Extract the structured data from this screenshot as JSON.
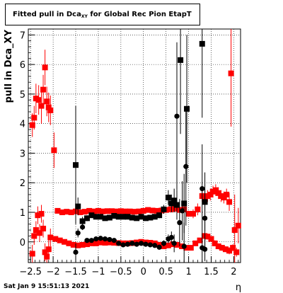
{
  "title": {
    "main": "Fitted pull in Dca",
    "sub": "XY",
    "rest": " for Global Rec Pion EtapT"
  },
  "timestamp": "Sat Jan  9 15:51:13 2021",
  "colors": {
    "series_red": "#ff0000",
    "series_black": "#000000",
    "grid": "#000000",
    "frame": "#000000"
  },
  "chart_data": {
    "type": "scatter",
    "title": "Fitted pull in Dca_XY for Global Rec Pion EtapT",
    "xlabel": "η",
    "ylabel": "pull in Dca_XY",
    "xlim": [
      -2.55,
      2.15
    ],
    "ylim": [
      -0.7,
      7.2
    ],
    "grid": true,
    "xticks": [
      -2.5,
      -2,
      -1.5,
      -1,
      -0.5,
      0,
      0.5,
      1,
      1.5,
      2
    ],
    "xtick_labels": [
      "−2.5",
      "−2",
      "−1.5",
      "−1",
      "−0.5",
      "0",
      "0.5",
      "1",
      "1.5",
      "2"
    ],
    "yticks": [
      0,
      1,
      2,
      3,
      4,
      5,
      6,
      7
    ],
    "ytick_labels": [
      "0",
      "1",
      "2",
      "3",
      "4",
      "5",
      "6",
      "7"
    ],
    "series": [
      {
        "color": "#ff0000",
        "marker": "square",
        "points": [
          {
            "x": -2.46,
            "y": 3.95,
            "err": 0.4
          },
          {
            "x": -2.42,
            "y": 4.2,
            "err": 0.4
          },
          {
            "x": -2.38,
            "y": 4.85,
            "err": 0.5
          },
          {
            "x": -2.32,
            "y": 4.8,
            "err": 0.5
          },
          {
            "x": -2.26,
            "y": 4.6,
            "err": 0.6
          },
          {
            "x": -2.22,
            "y": 5.15,
            "err": 0.5
          },
          {
            "x": -2.18,
            "y": 5.9,
            "err": 0.6
          },
          {
            "x": -2.14,
            "y": 4.75,
            "err": 0.5
          },
          {
            "x": -2.1,
            "y": 4.55,
            "err": 0.5
          },
          {
            "x": -2.06,
            "y": 4.45,
            "err": 0.5
          },
          {
            "x": -1.98,
            "y": 3.1,
            "err": 0.6
          },
          {
            "x": -1.9,
            "y": 1.05,
            "err": 0.06
          },
          {
            "x": -1.8,
            "y": 1.0,
            "err": 0.05
          },
          {
            "x": -1.7,
            "y": 1.02,
            "err": 0.05
          },
          {
            "x": -1.6,
            "y": 1.0,
            "err": 0.05
          },
          {
            "x": -1.5,
            "y": 1.03,
            "err": 0.05
          },
          {
            "x": -1.4,
            "y": 1.0,
            "err": 0.05
          },
          {
            "x": -1.3,
            "y": 1.02,
            "err": 0.05
          },
          {
            "x": -1.2,
            "y": 1.05,
            "err": 0.05
          },
          {
            "x": -1.1,
            "y": 1.03,
            "err": 0.05
          },
          {
            "x": -1.0,
            "y": 1.05,
            "err": 0.05
          },
          {
            "x": -0.9,
            "y": 1.03,
            "err": 0.05
          },
          {
            "x": -0.8,
            "y": 1.04,
            "err": 0.05
          },
          {
            "x": -0.7,
            "y": 1.04,
            "err": 0.05
          },
          {
            "x": -0.6,
            "y": 1.03,
            "err": 0.05
          },
          {
            "x": -0.5,
            "y": 1.04,
            "err": 0.05
          },
          {
            "x": -0.4,
            "y": 1.03,
            "err": 0.05
          },
          {
            "x": -0.3,
            "y": 1.03,
            "err": 0.05
          },
          {
            "x": -0.2,
            "y": 1.02,
            "err": 0.05
          },
          {
            "x": -0.1,
            "y": 1.03,
            "err": 0.05
          },
          {
            "x": 0.0,
            "y": 1.05,
            "err": 0.05
          },
          {
            "x": 0.1,
            "y": 1.08,
            "err": 0.05
          },
          {
            "x": 0.2,
            "y": 1.06,
            "err": 0.05
          },
          {
            "x": 0.3,
            "y": 1.05,
            "err": 0.05
          },
          {
            "x": 0.4,
            "y": 1.06,
            "err": 0.05
          },
          {
            "x": 0.5,
            "y": 1.08,
            "err": 0.05
          },
          {
            "x": 0.6,
            "y": 1.1,
            "err": 0.06
          },
          {
            "x": 0.7,
            "y": 1.12,
            "err": 0.06
          },
          {
            "x": 0.8,
            "y": 1.08,
            "err": 0.06
          },
          {
            "x": 0.9,
            "y": 1.1,
            "err": 0.06
          },
          {
            "x": 1.0,
            "y": 0.95,
            "err": 0.1
          },
          {
            "x": 1.1,
            "y": 0.95,
            "err": 0.15
          },
          {
            "x": 1.2,
            "y": 1.1,
            "err": 0.2
          },
          {
            "x": 1.3,
            "y": 1.55,
            "err": 0.2
          },
          {
            "x": 1.36,
            "y": 1.45,
            "err": 0.2
          },
          {
            "x": 1.42,
            "y": 1.55,
            "err": 0.2
          },
          {
            "x": 1.48,
            "y": 1.6,
            "err": 0.2
          },
          {
            "x": 1.54,
            "y": 1.7,
            "err": 0.2
          },
          {
            "x": 1.6,
            "y": 1.75,
            "err": 0.2
          },
          {
            "x": 1.66,
            "y": 1.65,
            "err": 0.2
          },
          {
            "x": 1.72,
            "y": 1.55,
            "err": 0.2
          },
          {
            "x": 1.78,
            "y": 1.5,
            "err": 0.2
          },
          {
            "x": 1.84,
            "y": 1.6,
            "err": 0.2
          },
          {
            "x": 1.9,
            "y": 1.35,
            "err": 0.3
          },
          {
            "x": 1.94,
            "y": 5.7,
            "err": 1.8
          },
          {
            "x": 2.02,
            "y": 0.4,
            "err": 1.2
          },
          {
            "x": 2.1,
            "y": 0.55,
            "err": 0.6
          },
          {
            "x": -2.46,
            "y": -0.4,
            "err": 0.3
          },
          {
            "x": -2.42,
            "y": 0.2,
            "err": 0.3
          },
          {
            "x": -2.38,
            "y": 0.4,
            "err": 0.3
          },
          {
            "x": -2.34,
            "y": 0.9,
            "err": 0.3
          },
          {
            "x": -2.3,
            "y": 0.3,
            "err": 0.3
          },
          {
            "x": -2.26,
            "y": 0.95,
            "err": 0.3
          },
          {
            "x": -2.22,
            "y": 0.45,
            "err": 0.3
          },
          {
            "x": -2.18,
            "y": -0.35,
            "err": 0.3
          },
          {
            "x": -2.14,
            "y": -0.5,
            "err": 0.3
          },
          {
            "x": -2.1,
            "y": -0.25,
            "err": 0.3
          },
          {
            "x": -2.06,
            "y": 0.15,
            "err": 0.3
          },
          {
            "x": -1.95,
            "y": 0.1,
            "err": 0.05
          },
          {
            "x": -1.85,
            "y": 0.05,
            "err": 0.05
          },
          {
            "x": -1.75,
            "y": 0.0,
            "err": 0.05
          },
          {
            "x": -1.65,
            "y": -0.05,
            "err": 0.05
          },
          {
            "x": -1.55,
            "y": -0.1,
            "err": 0.05
          },
          {
            "x": -1.45,
            "y": -0.12,
            "err": 0.05
          },
          {
            "x": -1.35,
            "y": -0.1,
            "err": 0.05
          },
          {
            "x": -1.25,
            "y": -0.08,
            "err": 0.05
          },
          {
            "x": -1.15,
            "y": -0.05,
            "err": 0.05
          },
          {
            "x": -1.05,
            "y": -0.05,
            "err": 0.05
          },
          {
            "x": -0.95,
            "y": -0.02,
            "err": 0.05
          },
          {
            "x": -0.85,
            "y": -0.03,
            "err": 0.05
          },
          {
            "x": -0.75,
            "y": -0.02,
            "err": 0.05
          },
          {
            "x": -0.65,
            "y": -0.03,
            "err": 0.05
          },
          {
            "x": -0.55,
            "y": -0.04,
            "err": 0.05
          },
          {
            "x": -0.45,
            "y": -0.05,
            "err": 0.05
          },
          {
            "x": -0.35,
            "y": -0.05,
            "err": 0.05
          },
          {
            "x": -0.25,
            "y": -0.04,
            "err": 0.05
          },
          {
            "x": -0.15,
            "y": -0.02,
            "err": 0.05
          },
          {
            "x": -0.05,
            "y": 0.0,
            "err": 0.05
          },
          {
            "x": 0.05,
            "y": -0.02,
            "err": 0.05
          },
          {
            "x": 0.15,
            "y": -0.03,
            "err": 0.05
          },
          {
            "x": 0.25,
            "y": -0.05,
            "err": 0.05
          },
          {
            "x": 0.35,
            "y": -0.1,
            "err": 0.05
          },
          {
            "x": 0.45,
            "y": -0.15,
            "err": 0.05
          },
          {
            "x": 0.55,
            "y": -0.12,
            "err": 0.05
          },
          {
            "x": 0.65,
            "y": -0.08,
            "err": 0.05
          },
          {
            "x": 0.75,
            "y": -0.1,
            "err": 0.05
          },
          {
            "x": 0.85,
            "y": -0.15,
            "err": 0.05
          },
          {
            "x": 0.95,
            "y": -0.2,
            "err": 0.05
          },
          {
            "x": 1.05,
            "y": -0.2,
            "err": 0.05
          },
          {
            "x": 1.15,
            "y": -0.05,
            "err": 0.06
          },
          {
            "x": 1.25,
            "y": 0.05,
            "err": 0.08
          },
          {
            "x": 1.35,
            "y": 0.2,
            "err": 0.1
          },
          {
            "x": 1.42,
            "y": 0.18,
            "err": 0.1
          },
          {
            "x": 1.5,
            "y": 0.1,
            "err": 0.1
          },
          {
            "x": 1.58,
            "y": -0.05,
            "err": 0.1
          },
          {
            "x": 1.66,
            "y": -0.15,
            "err": 0.1
          },
          {
            "x": 1.74,
            "y": -0.2,
            "err": 0.1
          },
          {
            "x": 1.82,
            "y": -0.25,
            "err": 0.1
          },
          {
            "x": 1.9,
            "y": -0.3,
            "err": 0.12
          },
          {
            "x": 1.98,
            "y": -0.2,
            "err": 0.12
          },
          {
            "x": 2.06,
            "y": -0.35,
            "err": 0.15
          }
        ]
      },
      {
        "color": "#000000",
        "marker": "square",
        "points": [
          {
            "x": -1.5,
            "y": 2.6,
            "err": 2.0
          },
          {
            "x": -1.45,
            "y": 1.2,
            "err": 0.3
          },
          {
            "x": -1.35,
            "y": 0.7,
            "err": 0.15
          },
          {
            "x": -1.25,
            "y": 0.8,
            "err": 0.1
          },
          {
            "x": -1.15,
            "y": 0.9,
            "err": 0.08
          },
          {
            "x": -1.05,
            "y": 0.85,
            "err": 0.08
          },
          {
            "x": -0.95,
            "y": 0.85,
            "err": 0.08
          },
          {
            "x": -0.85,
            "y": 0.8,
            "err": 0.08
          },
          {
            "x": -0.75,
            "y": 0.82,
            "err": 0.08
          },
          {
            "x": -0.65,
            "y": 0.88,
            "err": 0.08
          },
          {
            "x": -0.55,
            "y": 0.85,
            "err": 0.08
          },
          {
            "x": -0.45,
            "y": 0.85,
            "err": 0.08
          },
          {
            "x": -0.35,
            "y": 0.85,
            "err": 0.08
          },
          {
            "x": -0.25,
            "y": 0.82,
            "err": 0.08
          },
          {
            "x": -0.15,
            "y": 0.8,
            "err": 0.08
          },
          {
            "x": -0.05,
            "y": 0.85,
            "err": 0.08
          },
          {
            "x": 0.05,
            "y": 0.8,
            "err": 0.08
          },
          {
            "x": 0.15,
            "y": 0.82,
            "err": 0.08
          },
          {
            "x": 0.25,
            "y": 0.85,
            "err": 0.08
          },
          {
            "x": 0.35,
            "y": 0.9,
            "err": 0.1
          },
          {
            "x": 0.45,
            "y": 1.1,
            "err": 0.15
          },
          {
            "x": 0.55,
            "y": 1.5,
            "err": 0.25
          },
          {
            "x": 0.62,
            "y": 1.3,
            "err": 0.3
          },
          {
            "x": 0.68,
            "y": 1.4,
            "err": 0.4
          },
          {
            "x": 0.74,
            "y": 1.25,
            "err": 0.5
          },
          {
            "x": 0.82,
            "y": 6.15,
            "err": 2.5
          },
          {
            "x": 0.9,
            "y": 1.3,
            "err": 1.0
          },
          {
            "x": 0.96,
            "y": 4.5,
            "err": 2.5
          },
          {
            "x": 1.3,
            "y": 6.7,
            "err": 2.5
          },
          {
            "x": 1.36,
            "y": 1.35,
            "err": 1.0
          }
        ]
      },
      {
        "color": "#000000",
        "marker": "circle",
        "points": [
          {
            "x": -1.5,
            "y": -0.35,
            "err": 0.3
          },
          {
            "x": -1.45,
            "y": 0.3,
            "err": 0.15
          },
          {
            "x": -1.35,
            "y": 0.5,
            "err": 0.1
          },
          {
            "x": -1.25,
            "y": 0.05,
            "err": 0.08
          },
          {
            "x": -1.15,
            "y": 0.05,
            "err": 0.06
          },
          {
            "x": -1.05,
            "y": 0.1,
            "err": 0.05
          },
          {
            "x": -0.95,
            "y": 0.12,
            "err": 0.05
          },
          {
            "x": -0.85,
            "y": 0.1,
            "err": 0.05
          },
          {
            "x": -0.75,
            "y": 0.08,
            "err": 0.05
          },
          {
            "x": -0.65,
            "y": 0.05,
            "err": 0.05
          },
          {
            "x": -0.55,
            "y": -0.05,
            "err": 0.05
          },
          {
            "x": -0.45,
            "y": -0.1,
            "err": 0.05
          },
          {
            "x": -0.35,
            "y": -0.08,
            "err": 0.05
          },
          {
            "x": -0.25,
            "y": -0.05,
            "err": 0.05
          },
          {
            "x": -0.15,
            "y": -0.08,
            "err": 0.05
          },
          {
            "x": -0.05,
            "y": -0.05,
            "err": 0.05
          },
          {
            "x": 0.05,
            "y": -0.08,
            "err": 0.05
          },
          {
            "x": 0.15,
            "y": -0.1,
            "err": 0.05
          },
          {
            "x": 0.25,
            "y": -0.12,
            "err": 0.06
          },
          {
            "x": 0.35,
            "y": -0.18,
            "err": 0.08
          },
          {
            "x": 0.45,
            "y": -0.05,
            "err": 0.1
          },
          {
            "x": 0.55,
            "y": 0.1,
            "err": 0.15
          },
          {
            "x": 0.62,
            "y": 0.15,
            "err": 0.2
          },
          {
            "x": 0.68,
            "y": -0.05,
            "err": 0.3
          },
          {
            "x": 0.74,
            "y": 4.25,
            "err": 2.5
          },
          {
            "x": 0.8,
            "y": 0.65,
            "err": 0.8
          },
          {
            "x": 0.86,
            "y": 1.05,
            "err": 1.0
          },
          {
            "x": 0.9,
            "y": -0.15,
            "err": 0.8
          },
          {
            "x": 0.94,
            "y": 2.55,
            "err": 2.0
          },
          {
            "x": 1.3,
            "y": 1.8,
            "err": 1.5
          },
          {
            "x": 1.36,
            "y": 0.8,
            "err": 1.0
          },
          {
            "x": 1.3,
            "y": -0.2,
            "err": 0.5
          },
          {
            "x": 1.36,
            "y": -0.25,
            "err": 0.4
          }
        ]
      }
    ]
  }
}
